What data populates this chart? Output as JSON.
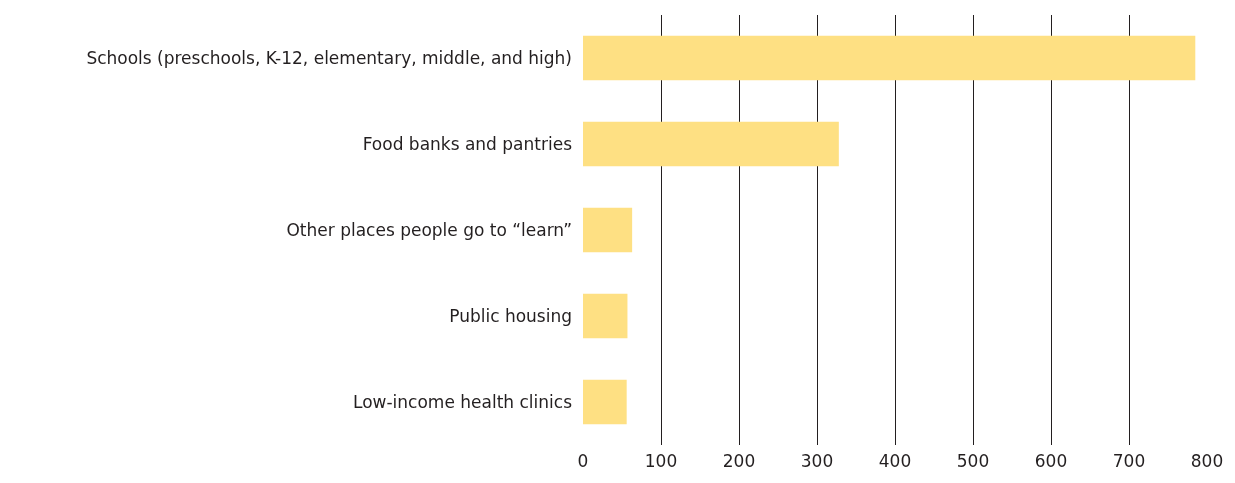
{
  "chart_data": {
    "type": "bar",
    "orientation": "horizontal",
    "categories": [
      "Schools (preschools, K-12, elementary, middle, and high)",
      "Food banks and pantries",
      "Other places people go to “learn”",
      "Public housing",
      "Low-income health clinics"
    ],
    "values": [
      785,
      328,
      63,
      57,
      56
    ],
    "color": "#fee083",
    "xlim": [
      0,
      800
    ],
    "xticks": [
      0,
      100,
      200,
      300,
      400,
      500,
      600,
      700,
      800
    ],
    "grid": "x"
  }
}
